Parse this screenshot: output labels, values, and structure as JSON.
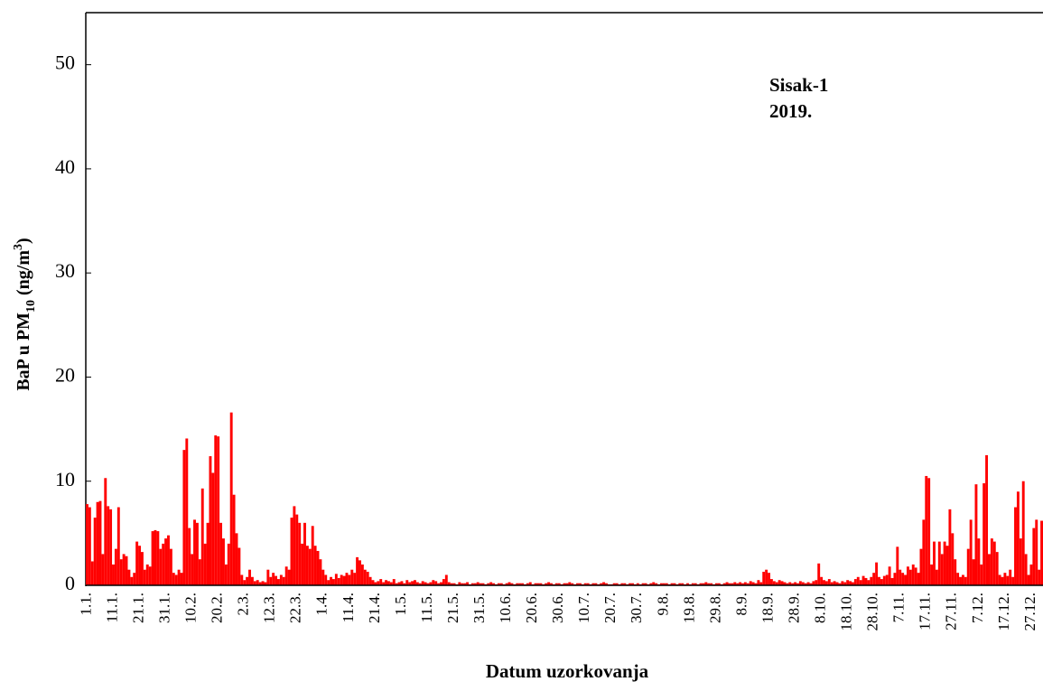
{
  "chart_data": {
    "type": "bar",
    "annotations": [
      "Sisak-1",
      "2019."
    ],
    "ylabel": [
      "BaP u PM",
      "10",
      " (ng/m",
      "3",
      ")"
    ],
    "xlabel": "Datum uzorkovanja",
    "color": "#ff0000",
    "ylim": [
      0,
      55
    ],
    "yticks": [
      0,
      10,
      20,
      30,
      40,
      50
    ],
    "categories": [
      "1.1.",
      null,
      null,
      null,
      null,
      null,
      null,
      null,
      null,
      null,
      "11.1.",
      null,
      null,
      null,
      null,
      null,
      null,
      null,
      null,
      null,
      "21.1.",
      null,
      null,
      null,
      null,
      null,
      null,
      null,
      null,
      null,
      "31.1.",
      null,
      null,
      null,
      null,
      null,
      null,
      null,
      null,
      null,
      "10.2.",
      null,
      null,
      null,
      null,
      null,
      null,
      null,
      null,
      null,
      "20.2.",
      null,
      null,
      null,
      null,
      null,
      null,
      null,
      null,
      null,
      "2.3.",
      null,
      null,
      null,
      null,
      null,
      null,
      null,
      null,
      null,
      "12.3.",
      null,
      null,
      null,
      null,
      null,
      null,
      null,
      null,
      null,
      "22.3.",
      null,
      null,
      null,
      null,
      null,
      null,
      null,
      null,
      null,
      "1.4.",
      null,
      null,
      null,
      null,
      null,
      null,
      null,
      null,
      null,
      "11.4.",
      null,
      null,
      null,
      null,
      null,
      null,
      null,
      null,
      null,
      "21.4.",
      null,
      null,
      null,
      null,
      null,
      null,
      null,
      null,
      null,
      "1.5.",
      null,
      null,
      null,
      null,
      null,
      null,
      null,
      null,
      null,
      "11.5.",
      null,
      null,
      null,
      null,
      null,
      null,
      null,
      null,
      null,
      "21.5.",
      null,
      null,
      null,
      null,
      null,
      null,
      null,
      null,
      null,
      "31.5.",
      null,
      null,
      null,
      null,
      null,
      null,
      null,
      null,
      null,
      "10.6.",
      null,
      null,
      null,
      null,
      null,
      null,
      null,
      null,
      null,
      "20.6.",
      null,
      null,
      null,
      null,
      null,
      null,
      null,
      null,
      null,
      "30.6.",
      null,
      null,
      null,
      null,
      null,
      null,
      null,
      null,
      null,
      "10.7.",
      null,
      null,
      null,
      null,
      null,
      null,
      null,
      null,
      null,
      "20.7.",
      null,
      null,
      null,
      null,
      null,
      null,
      null,
      null,
      null,
      "30.7.",
      null,
      null,
      null,
      null,
      null,
      null,
      null,
      null,
      null,
      "9.8.",
      null,
      null,
      null,
      null,
      null,
      null,
      null,
      null,
      null,
      "19.8.",
      null,
      null,
      null,
      null,
      null,
      null,
      null,
      null,
      null,
      "29.8.",
      null,
      null,
      null,
      null,
      null,
      null,
      null,
      null,
      null,
      "8.9.",
      null,
      null,
      null,
      null,
      null,
      null,
      null,
      null,
      null,
      "18.9.",
      null,
      null,
      null,
      null,
      null,
      null,
      null,
      null,
      null,
      "28.9.",
      null,
      null,
      null,
      null,
      null,
      null,
      null,
      null,
      null,
      "8.10.",
      null,
      null,
      null,
      null,
      null,
      null,
      null,
      null,
      null,
      "18.10.",
      null,
      null,
      null,
      null,
      null,
      null,
      null,
      null,
      null,
      "28.10.",
      null,
      null,
      null,
      null,
      null,
      null,
      null,
      null,
      null,
      "7.11.",
      null,
      null,
      null,
      null,
      null,
      null,
      null,
      null,
      null,
      "17.11.",
      null,
      null,
      null,
      null,
      null,
      null,
      null,
      null,
      null,
      "27.11.",
      null,
      null,
      null,
      null,
      null,
      null,
      null,
      null,
      null,
      "7.12.",
      null,
      null,
      null,
      null,
      null,
      null,
      null,
      null,
      null,
      "17.12.",
      null,
      null,
      null,
      null,
      null,
      null,
      null,
      null,
      null,
      "27.12.",
      null,
      null,
      null,
      null
    ],
    "values": [
      7.8,
      7.5,
      2.3,
      6.5,
      8.0,
      8.1,
      3.0,
      10.3,
      7.6,
      7.3,
      2.0,
      3.5,
      7.5,
      2.5,
      3.0,
      2.8,
      1.5,
      0.8,
      1.2,
      4.2,
      3.8,
      3.2,
      1.5,
      2.0,
      1.8,
      5.2,
      5.3,
      5.2,
      3.5,
      4.0,
      4.5,
      4.8,
      3.5,
      1.2,
      1.0,
      1.5,
      1.2,
      13.0,
      14.1,
      5.5,
      3.0,
      6.3,
      6.0,
      2.5,
      9.3,
      4.0,
      6.0,
      12.4,
      10.8,
      14.4,
      14.3,
      6.0,
      4.5,
      2.0,
      4.0,
      16.6,
      8.7,
      5.0,
      3.6,
      1.0,
      0.5,
      0.8,
      1.5,
      0.8,
      0.4,
      0.5,
      0.3,
      0.4,
      0.3,
      1.5,
      0.8,
      1.2,
      0.9,
      0.6,
      1.0,
      0.8,
      1.8,
      1.5,
      6.5,
      7.6,
      6.8,
      6.0,
      4.0,
      6.0,
      3.8,
      3.5,
      5.7,
      3.8,
      3.3,
      2.5,
      1.5,
      1.0,
      0.5,
      0.8,
      0.6,
      1.1,
      0.7,
      1.0,
      0.9,
      1.2,
      1.0,
      1.5,
      1.2,
      2.7,
      2.4,
      2.0,
      1.5,
      1.3,
      0.8,
      0.5,
      0.3,
      0.4,
      0.6,
      0.3,
      0.5,
      0.4,
      0.3,
      0.6,
      0.2,
      0.3,
      0.4,
      0.2,
      0.5,
      0.3,
      0.4,
      0.5,
      0.3,
      0.2,
      0.4,
      0.3,
      0.2,
      0.3,
      0.5,
      0.4,
      0.2,
      0.3,
      0.6,
      1.0,
      0.3,
      0.2,
      0.2,
      0.1,
      0.3,
      0.2,
      0.2,
      0.3,
      0.1,
      0.2,
      0.2,
      0.3,
      0.2,
      0.2,
      0.1,
      0.2,
      0.3,
      0.2,
      0.1,
      0.2,
      0.2,
      0.1,
      0.2,
      0.3,
      0.2,
      0.1,
      0.2,
      0.2,
      0.2,
      0.1,
      0.2,
      0.3,
      0.1,
      0.2,
      0.2,
      0.2,
      0.1,
      0.2,
      0.3,
      0.2,
      0.1,
      0.2,
      0.2,
      0.1,
      0.2,
      0.2,
      0.3,
      0.2,
      0.1,
      0.2,
      0.2,
      0.1,
      0.2,
      0.2,
      0.1,
      0.2,
      0.2,
      0.1,
      0.2,
      0.3,
      0.2,
      0.1,
      0.1,
      0.2,
      0.2,
      0.1,
      0.2,
      0.2,
      0.1,
      0.2,
      0.2,
      0.1,
      0.2,
      0.1,
      0.2,
      0.2,
      0.1,
      0.2,
      0.3,
      0.2,
      0.1,
      0.2,
      0.2,
      0.2,
      0.1,
      0.2,
      0.2,
      0.1,
      0.2,
      0.2,
      0.1,
      0.2,
      0.1,
      0.2,
      0.2,
      0.1,
      0.2,
      0.2,
      0.3,
      0.2,
      0.2,
      0.1,
      0.2,
      0.2,
      0.1,
      0.2,
      0.3,
      0.2,
      0.2,
      0.3,
      0.2,
      0.3,
      0.2,
      0.3,
      0.2,
      0.4,
      0.3,
      0.2,
      0.5,
      0.3,
      1.3,
      1.5,
      1.2,
      0.6,
      0.4,
      0.3,
      0.5,
      0.4,
      0.3,
      0.2,
      0.3,
      0.2,
      0.3,
      0.2,
      0.4,
      0.3,
      0.2,
      0.3,
      0.2,
      0.4,
      0.5,
      2.1,
      0.8,
      0.5,
      0.4,
      0.6,
      0.3,
      0.4,
      0.3,
      0.2,
      0.4,
      0.3,
      0.5,
      0.4,
      0.3,
      0.6,
      0.8,
      0.5,
      0.9,
      0.7,
      0.5,
      0.8,
      1.2,
      2.2,
      0.8,
      0.6,
      0.9,
      1.0,
      1.8,
      0.7,
      1.2,
      3.7,
      1.5,
      1.2,
      1.0,
      1.8,
      1.5,
      2.0,
      1.7,
      1.2,
      3.5,
      6.3,
      10.5,
      10.3,
      2.0,
      4.2,
      1.5,
      4.2,
      3.0,
      4.2,
      3.8,
      7.3,
      5.0,
      2.5,
      1.2,
      0.8,
      1.0,
      0.8,
      3.5,
      6.3,
      2.5,
      9.7,
      4.5,
      2.0,
      9.8,
      12.5,
      3.0,
      4.5,
      4.2,
      3.2,
      1.0,
      0.8,
      1.2,
      0.9,
      1.5,
      0.8,
      7.5,
      9.0,
      4.5,
      10.0,
      3.0,
      1.0,
      2.0,
      5.5,
      6.3,
      1.5,
      6.2
    ]
  }
}
